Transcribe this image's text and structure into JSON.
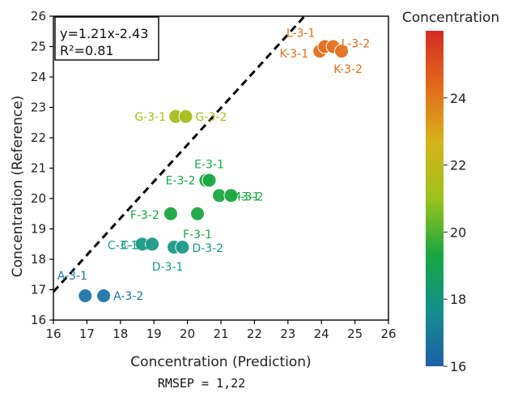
{
  "chart_data": {
    "type": "scatter",
    "xlabel": "Concentration (Prediction)",
    "ylabel": "Concentration (Reference)",
    "xlim": [
      16,
      26
    ],
    "ylim": [
      16,
      26
    ],
    "xticks": [
      16,
      17,
      18,
      19,
      20,
      21,
      22,
      23,
      24,
      25,
      26
    ],
    "yticks": [
      16,
      17,
      18,
      19,
      20,
      21,
      22,
      23,
      24,
      25,
      26
    ],
    "equation": "y=1.21x-2.43",
    "r2": "R²=0.81",
    "fit_line": {
      "slope": 1.21,
      "intercept": -2.43,
      "style": "dashed",
      "color": "#000000"
    },
    "footer": "RMSEP = 1,22",
    "colorbar": {
      "title": "Concentration",
      "range": [
        16,
        26
      ],
      "ticks": [
        16,
        18,
        20,
        22,
        24
      ],
      "colors": [
        "#1f5fa8",
        "#138f8c",
        "#1aa640",
        "#9cc21c",
        "#d6b31a",
        "#e26a1b",
        "#d62a24"
      ]
    },
    "points": [
      {
        "label": "A-3-1",
        "x": 16.95,
        "y": 16.8,
        "color": "#1e75a8"
      },
      {
        "label": "A-3-2",
        "x": 17.5,
        "y": 16.8,
        "color": "#1e75a8"
      },
      {
        "label": "C-3-1",
        "x": 18.65,
        "y": 18.5,
        "color": "#1a9a86"
      },
      {
        "label": "C-3-2",
        "x": 18.95,
        "y": 18.5,
        "color": "#1a9a86"
      },
      {
        "label": "D-3-1",
        "x": 19.6,
        "y": 18.4,
        "color": "#1a9a86"
      },
      {
        "label": "D-3-2",
        "x": 19.85,
        "y": 18.4,
        "color": "#1a9a86"
      },
      {
        "label": "F-3-2",
        "x": 19.5,
        "y": 19.5,
        "color": "#1aa640"
      },
      {
        "label": "F-3-1",
        "x": 20.3,
        "y": 19.5,
        "color": "#1aa640"
      },
      {
        "label": "E-3-2",
        "x": 20.55,
        "y": 20.6,
        "color": "#1aa640"
      },
      {
        "label": "E-3-1",
        "x": 20.65,
        "y": 20.6,
        "color": "#1aa640"
      },
      {
        "label": "M-3-1",
        "x": 20.95,
        "y": 20.1,
        "color": "#1aa640"
      },
      {
        "label": "M-3-2",
        "x": 21.3,
        "y": 20.1,
        "color": "#1aa640"
      },
      {
        "label": "G-3-1",
        "x": 19.65,
        "y": 22.7,
        "color": "#a6bd1c"
      },
      {
        "label": "G-3-2",
        "x": 19.95,
        "y": 22.7,
        "color": "#a6bd1c"
      },
      {
        "label": "K-3-1",
        "x": 23.95,
        "y": 24.85,
        "color": "#e0701c"
      },
      {
        "label": "L-3-1",
        "x": 24.1,
        "y": 25.0,
        "color": "#e0701c"
      },
      {
        "label": "L-3-2",
        "x": 24.35,
        "y": 25.0,
        "color": "#e0701c"
      },
      {
        "label": "K-3-2",
        "x": 24.6,
        "y": 24.85,
        "color": "#e0701c"
      }
    ]
  }
}
